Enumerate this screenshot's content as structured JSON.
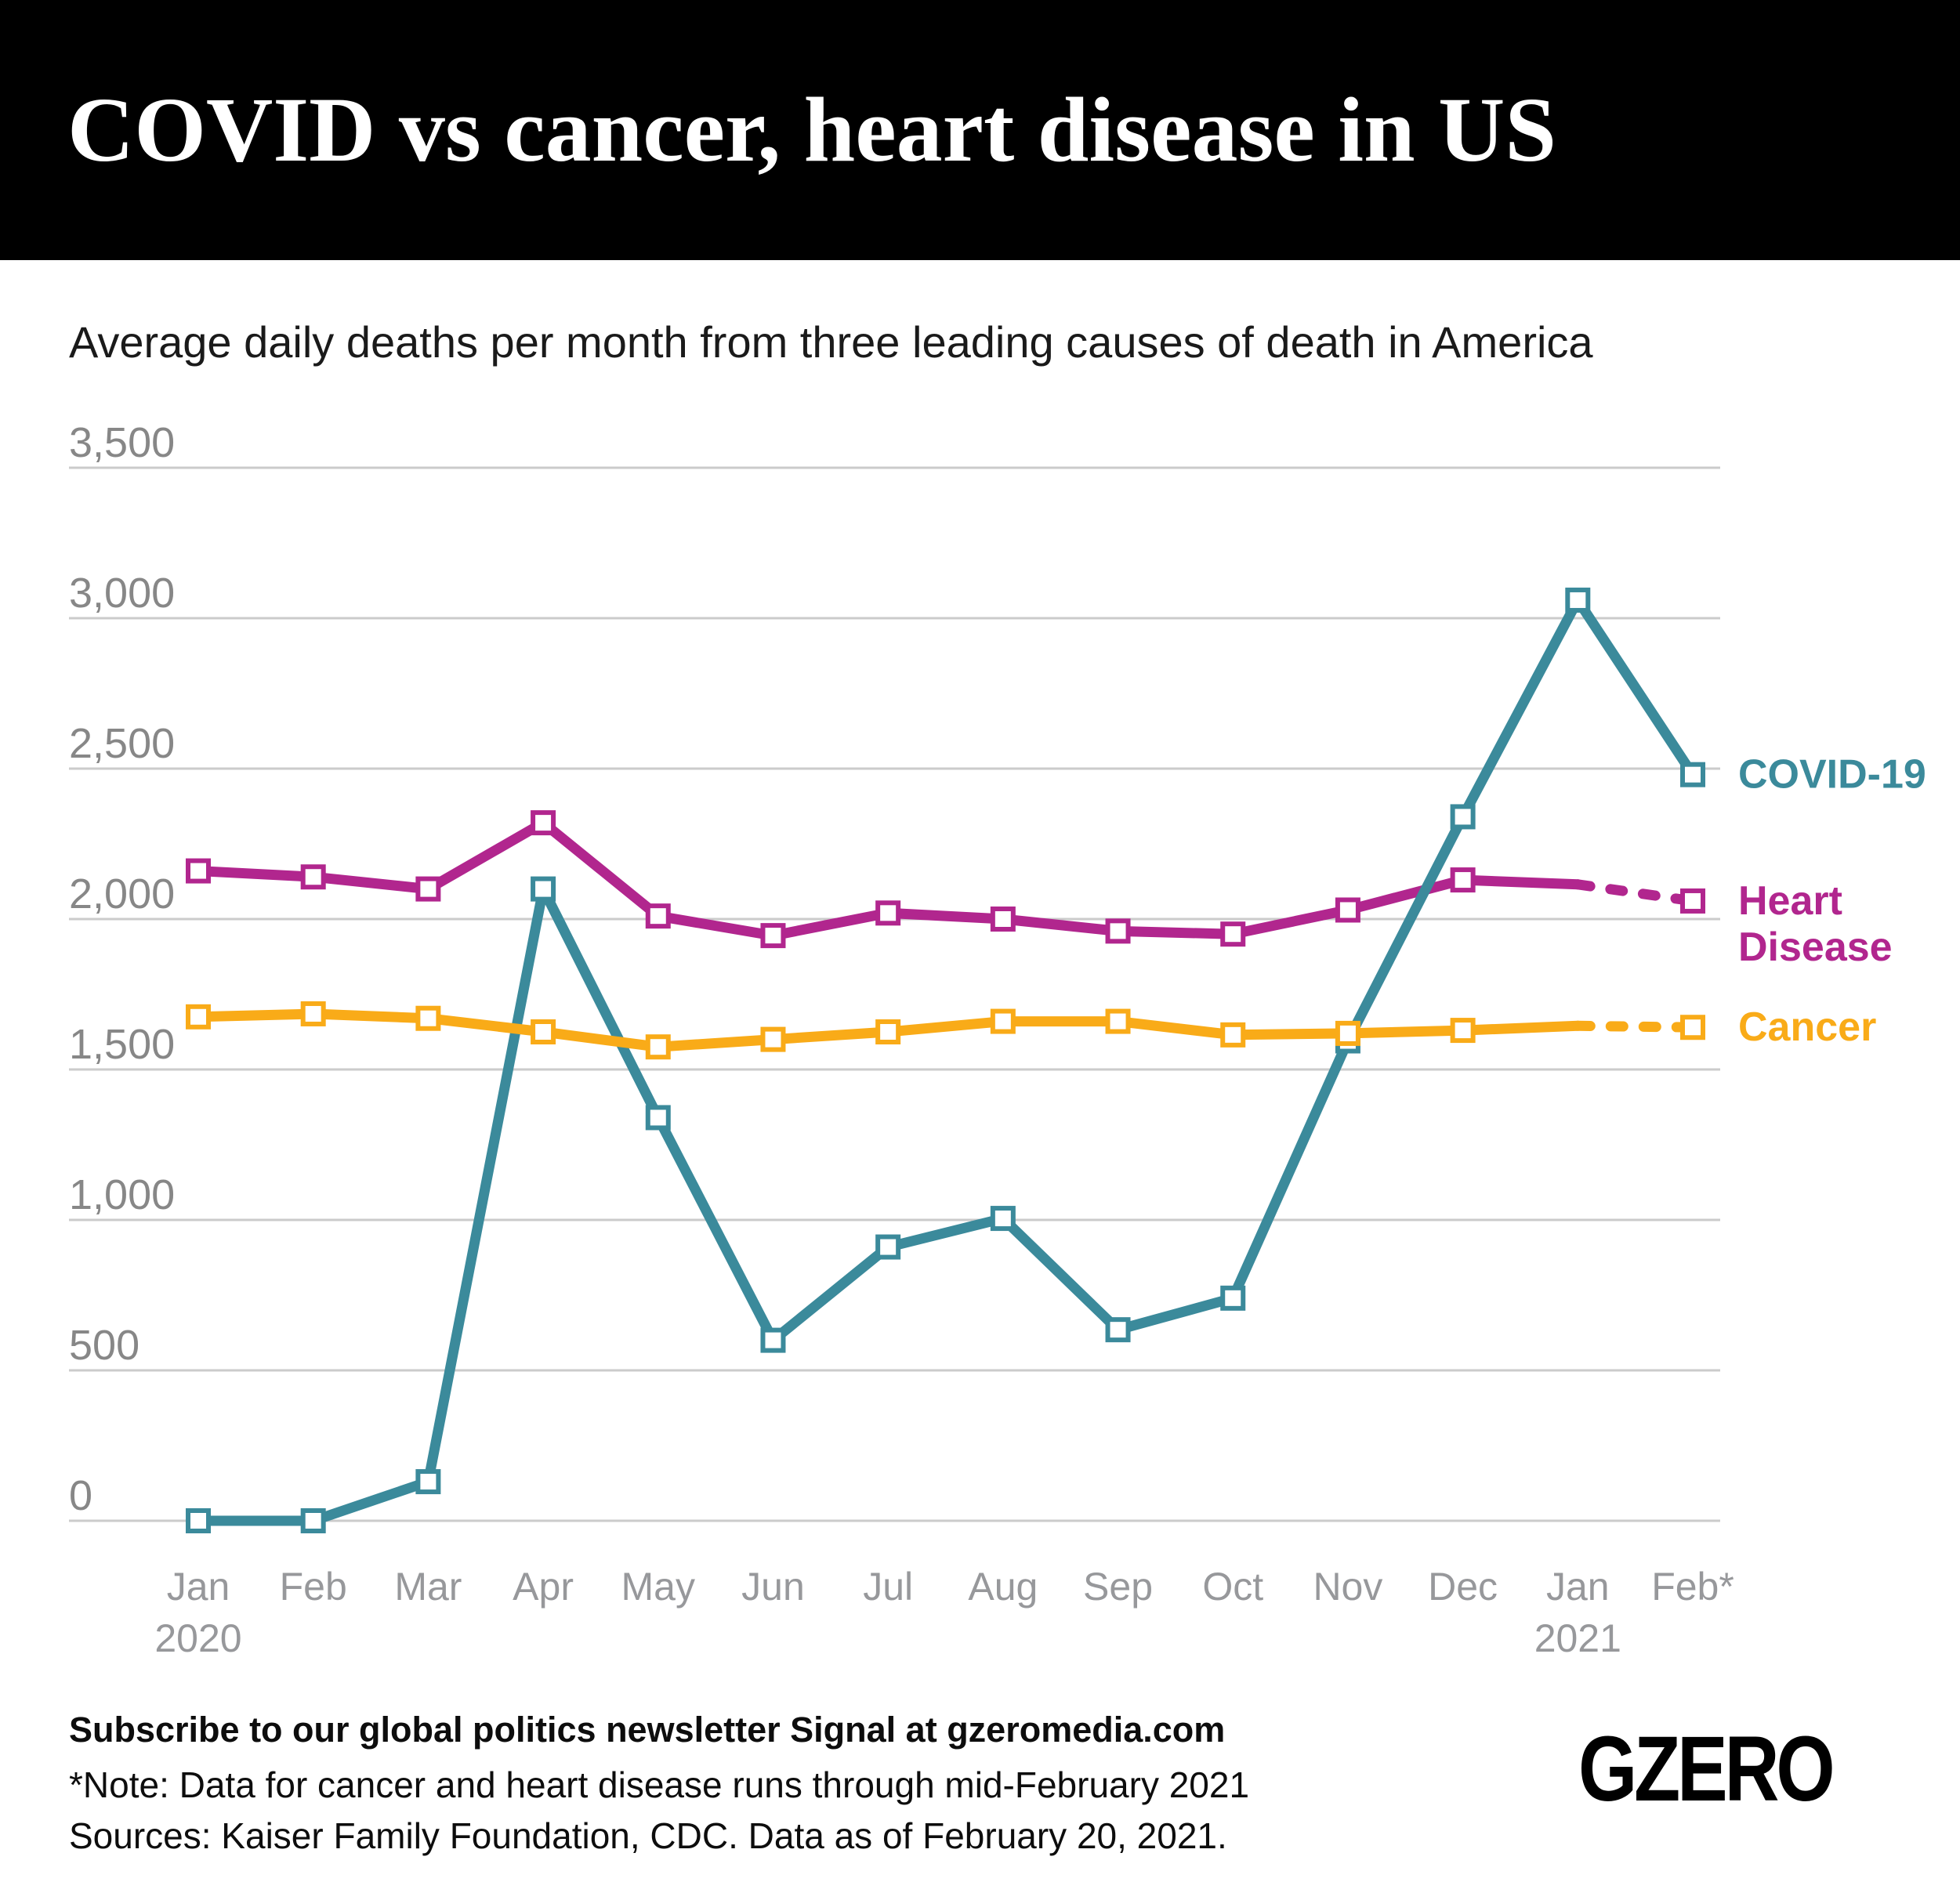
{
  "header": {
    "title": "COVID vs cancer, heart disease in US"
  },
  "subtitle": "Average daily deaths per month from three leading causes of death in America",
  "chart_data": {
    "type": "line",
    "title": "COVID vs cancer, heart disease in US",
    "subtitle": "Average daily deaths per month from three leading causes of death in America",
    "categories": [
      "Jan",
      "Feb",
      "Mar",
      "Apr",
      "May",
      "Jun",
      "Jul",
      "Aug",
      "Sep",
      "Oct",
      "Nov",
      "Dec",
      "Jan",
      "Feb*"
    ],
    "year_labels": [
      {
        "index": 0,
        "text": "2020"
      },
      {
        "index": 12,
        "text": "2021"
      }
    ],
    "y_ticks": [
      0,
      500,
      1000,
      1500,
      2000,
      2500,
      3000,
      3500
    ],
    "ylim": [
      0,
      3500
    ],
    "grid": true,
    "legend_position": "right",
    "grid_color": "#cbcbcb",
    "tick_label_color": "#878787",
    "x_label_color": "#97989b",
    "series": [
      {
        "name": "Heart Disease",
        "legend_lines": [
          "Heart",
          "Disease"
        ],
        "color": "#b1268e",
        "dashed_from_index": 12,
        "values": [
          2160,
          2140,
          2100,
          2320,
          2010,
          1945,
          2020,
          2000,
          1960,
          1950,
          2030,
          2130,
          2115,
          2060
        ]
      },
      {
        "name": "COVID-19",
        "legend_lines": [
          "COVID-19"
        ],
        "color": "#3b8a9b",
        "dashed_from_index": null,
        "values": [
          0,
          0,
          130,
          2100,
          1340,
          600,
          910,
          1005,
          635,
          740,
          1595,
          2340,
          3060,
          2480
        ]
      },
      {
        "name": "Cancer",
        "legend_lines": [
          "Cancer"
        ],
        "color": "#f9ab18",
        "dashed_from_index": 12,
        "values": [
          1675,
          1685,
          1670,
          1625,
          1575,
          1600,
          1625,
          1660,
          1660,
          1615,
          1620,
          1630,
          1645,
          1640
        ]
      }
    ]
  },
  "footer": {
    "subscribe": "Subscribe to our global politics newsletter Signal at gzeromedia.com",
    "note": "*Note: Data for cancer and heart disease runs through mid-February 2021",
    "sources": "Sources: Kaiser Family Foundation, CDC. Data as of February 20, 2021."
  },
  "logo": {
    "text": "GZERO"
  }
}
